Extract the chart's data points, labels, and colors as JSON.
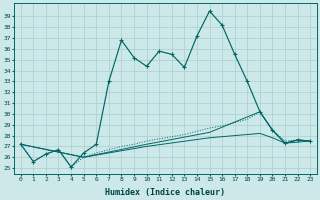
{
  "xlabel": "Humidex (Indice chaleur)",
  "background_color": "#cce8e8",
  "grid_color": "#aacece",
  "line_color": "#006666",
  "xlim": [
    -0.5,
    23.5
  ],
  "ylim": [
    24.5,
    40.2
  ],
  "yticks": [
    25,
    26,
    27,
    28,
    29,
    30,
    31,
    32,
    33,
    34,
    35,
    36,
    37,
    38,
    39
  ],
  "xticks": [
    0,
    1,
    2,
    3,
    4,
    5,
    6,
    7,
    8,
    9,
    10,
    11,
    12,
    13,
    14,
    15,
    16,
    17,
    18,
    19,
    20,
    21,
    22,
    23
  ],
  "line_jagged_x": [
    0,
    1,
    2,
    3,
    4,
    5,
    6,
    7,
    8,
    9,
    10,
    11,
    12,
    13,
    14,
    15,
    16,
    17,
    18,
    19,
    20,
    21,
    22,
    23
  ],
  "line_jagged_y": [
    27.2,
    25.6,
    26.3,
    26.7,
    25.1,
    26.4,
    27.2,
    33.0,
    36.8,
    35.2,
    34.4,
    35.8,
    35.5,
    34.3,
    37.2,
    39.5,
    38.2,
    35.5,
    33.0,
    30.2,
    28.5,
    27.3,
    27.6,
    27.5
  ],
  "line_gradual_x": [
    0,
    1,
    2,
    3,
    4,
    5,
    6,
    7,
    8,
    9,
    10,
    11,
    12,
    13,
    14,
    15,
    16,
    17,
    18,
    19,
    20,
    21,
    22,
    23
  ],
  "line_gradual_y": [
    27.2,
    25.6,
    26.3,
    26.7,
    25.1,
    26.0,
    26.4,
    26.7,
    27.0,
    27.2,
    27.5,
    27.7,
    27.9,
    28.1,
    28.4,
    28.7,
    28.9,
    29.2,
    29.5,
    30.2,
    28.5,
    27.5,
    27.6,
    27.5
  ],
  "line_flat1_x": [
    0,
    5,
    10,
    15,
    19,
    20,
    21,
    22,
    23
  ],
  "line_flat1_y": [
    27.2,
    26.0,
    27.2,
    28.3,
    30.2,
    28.5,
    27.3,
    27.6,
    27.5
  ],
  "line_flat2_x": [
    0,
    5,
    10,
    15,
    19,
    20,
    21,
    22,
    23
  ],
  "line_flat2_y": [
    27.2,
    26.0,
    27.0,
    27.8,
    28.2,
    27.8,
    27.3,
    27.4,
    27.5
  ]
}
